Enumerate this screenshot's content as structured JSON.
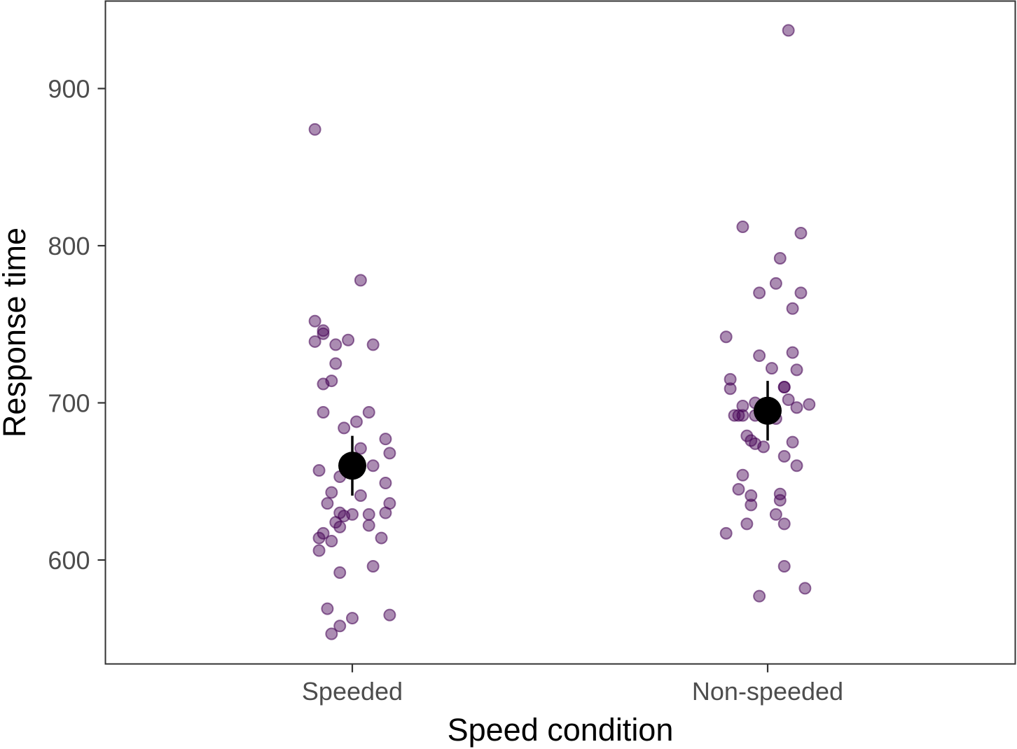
{
  "chart_data": {
    "type": "scatter",
    "title": "",
    "xlabel": "Speed condition",
    "ylabel": "Response time",
    "categories": [
      "Speeded",
      "Non-speeded"
    ],
    "y_ticks": [
      600,
      700,
      800,
      900
    ],
    "ylim": [
      544.5,
      966
    ],
    "grid": false,
    "legend": "none",
    "colors": {
      "points": "#440154",
      "summary": "#000000",
      "axis": "#333333",
      "tick_label": "#4d4d4d"
    },
    "series": [
      {
        "category": "Speeded",
        "points": [
          {
            "x": 0.91,
            "y": 874
          },
          {
            "x": 1.02,
            "y": 778
          },
          {
            "x": 0.91,
            "y": 752
          },
          {
            "x": 0.93,
            "y": 746
          },
          {
            "x": 0.93,
            "y": 744
          },
          {
            "x": 0.91,
            "y": 739
          },
          {
            "x": 0.99,
            "y": 740
          },
          {
            "x": 0.96,
            "y": 737
          },
          {
            "x": 1.05,
            "y": 737
          },
          {
            "x": 0.96,
            "y": 725
          },
          {
            "x": 0.93,
            "y": 712
          },
          {
            "x": 0.95,
            "y": 714
          },
          {
            "x": 0.93,
            "y": 694
          },
          {
            "x": 1.04,
            "y": 694
          },
          {
            "x": 1.01,
            "y": 688
          },
          {
            "x": 0.98,
            "y": 684
          },
          {
            "x": 1.08,
            "y": 677
          },
          {
            "x": 1.02,
            "y": 671
          },
          {
            "x": 1.09,
            "y": 668
          },
          {
            "x": 1.05,
            "y": 660
          },
          {
            "x": 0.92,
            "y": 657
          },
          {
            "x": 0.97,
            "y": 653
          },
          {
            "x": 1.08,
            "y": 649
          },
          {
            "x": 0.95,
            "y": 643
          },
          {
            "x": 1.02,
            "y": 641
          },
          {
            "x": 0.94,
            "y": 636
          },
          {
            "x": 1.09,
            "y": 636
          },
          {
            "x": 1.08,
            "y": 630
          },
          {
            "x": 0.97,
            "y": 630
          },
          {
            "x": 1.04,
            "y": 629
          },
          {
            "x": 1.0,
            "y": 629
          },
          {
            "x": 0.98,
            "y": 628
          },
          {
            "x": 0.96,
            "y": 624
          },
          {
            "x": 0.97,
            "y": 621
          },
          {
            "x": 1.04,
            "y": 622
          },
          {
            "x": 0.93,
            "y": 617
          },
          {
            "x": 0.92,
            "y": 614
          },
          {
            "x": 1.07,
            "y": 614
          },
          {
            "x": 0.95,
            "y": 612
          },
          {
            "x": 0.92,
            "y": 606
          },
          {
            "x": 1.05,
            "y": 596
          },
          {
            "x": 0.97,
            "y": 592
          },
          {
            "x": 0.94,
            "y": 569
          },
          {
            "x": 1.09,
            "y": 565
          },
          {
            "x": 1.0,
            "y": 563
          },
          {
            "x": 0.97,
            "y": 558
          },
          {
            "x": 0.95,
            "y": 553
          }
        ],
        "summary": {
          "mean": 660,
          "lower": 641,
          "upper": 679
        }
      },
      {
        "category": "Non-speeded",
        "points": [
          {
            "x": 2.05,
            "y": 937
          },
          {
            "x": 1.94,
            "y": 812
          },
          {
            "x": 2.08,
            "y": 808
          },
          {
            "x": 2.03,
            "y": 792
          },
          {
            "x": 2.02,
            "y": 776
          },
          {
            "x": 1.98,
            "y": 770
          },
          {
            "x": 2.08,
            "y": 770
          },
          {
            "x": 2.06,
            "y": 760
          },
          {
            "x": 1.9,
            "y": 742
          },
          {
            "x": 2.06,
            "y": 732
          },
          {
            "x": 1.98,
            "y": 730
          },
          {
            "x": 2.01,
            "y": 722
          },
          {
            "x": 2.07,
            "y": 721
          },
          {
            "x": 1.91,
            "y": 715
          },
          {
            "x": 2.04,
            "y": 710
          },
          {
            "x": 2.04,
            "y": 710
          },
          {
            "x": 1.91,
            "y": 709
          },
          {
            "x": 2.05,
            "y": 702
          },
          {
            "x": 1.97,
            "y": 700
          },
          {
            "x": 2.1,
            "y": 699
          },
          {
            "x": 1.94,
            "y": 698
          },
          {
            "x": 2.07,
            "y": 697
          },
          {
            "x": 1.93,
            "y": 692
          },
          {
            "x": 1.94,
            "y": 692
          },
          {
            "x": 1.97,
            "y": 692
          },
          {
            "x": 1.92,
            "y": 692
          },
          {
            "x": 2.02,
            "y": 690
          },
          {
            "x": 1.95,
            "y": 679
          },
          {
            "x": 1.96,
            "y": 676
          },
          {
            "x": 2.06,
            "y": 675
          },
          {
            "x": 1.97,
            "y": 674
          },
          {
            "x": 1.99,
            "y": 672
          },
          {
            "x": 2.04,
            "y": 666
          },
          {
            "x": 2.07,
            "y": 660
          },
          {
            "x": 1.94,
            "y": 654
          },
          {
            "x": 1.93,
            "y": 645
          },
          {
            "x": 2.03,
            "y": 642
          },
          {
            "x": 1.96,
            "y": 641
          },
          {
            "x": 2.03,
            "y": 638
          },
          {
            "x": 1.96,
            "y": 635
          },
          {
            "x": 2.02,
            "y": 629
          },
          {
            "x": 2.04,
            "y": 623
          },
          {
            "x": 1.95,
            "y": 623
          },
          {
            "x": 1.9,
            "y": 617
          },
          {
            "x": 2.04,
            "y": 596
          },
          {
            "x": 2.09,
            "y": 582
          },
          {
            "x": 1.98,
            "y": 577
          }
        ],
        "summary": {
          "mean": 695,
          "lower": 676,
          "upper": 714
        }
      }
    ]
  }
}
